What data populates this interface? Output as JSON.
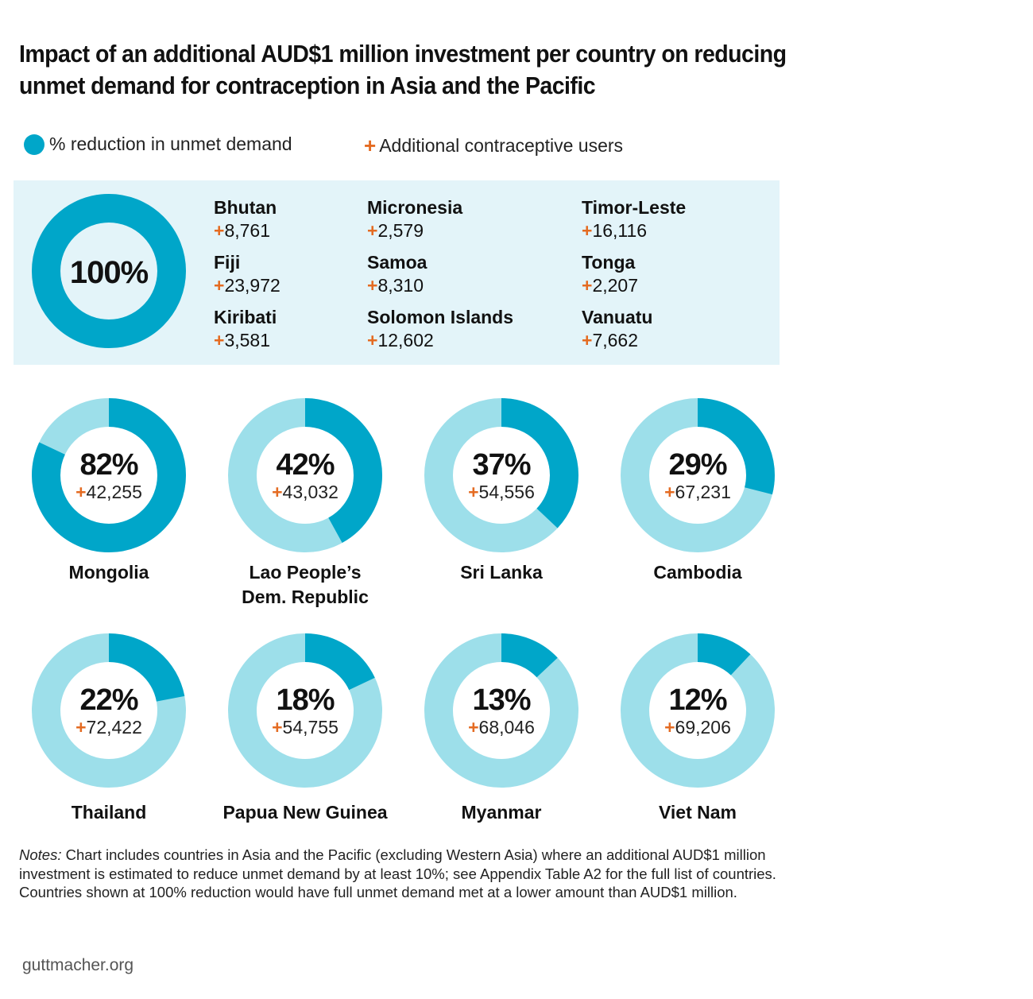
{
  "title_lines": [
    "Impact of an additional AUD$1 million investment per country on reducing",
    "unmet demand for contraception in Asia and the Pacific"
  ],
  "legend": {
    "pct_label": "% reduction in unmet demand",
    "users_label": "Additional contraceptive users"
  },
  "colors": {
    "primary": "#00a6c9",
    "secondary": "#9ddfea",
    "panel_bg": "#e3f4f9",
    "accent_plus": "#e46b22"
  },
  "chart_data": {
    "type": "pie",
    "value_unit": "% reduction in unmet demand",
    "full_group": {
      "pct": 100,
      "pct_label": "100%",
      "countries": [
        {
          "name": "Bhutan",
          "users": "+8,761"
        },
        {
          "name": "Fiji",
          "users": "+23,972"
        },
        {
          "name": "Kiribati",
          "users": "+3,581"
        },
        {
          "name": "Micronesia",
          "users": "+2,579"
        },
        {
          "name": "Samoa",
          "users": "+8,310"
        },
        {
          "name": "Solomon Islands",
          "users": "+12,602"
        },
        {
          "name": "Timor-Leste",
          "users": "+16,116"
        },
        {
          "name": "Tonga",
          "users": "+2,207"
        },
        {
          "name": "Vanuatu",
          "users": "+7,662"
        }
      ]
    },
    "countries": [
      {
        "name_lines": [
          "Mongolia"
        ],
        "pct": 82,
        "pct_label": "82%",
        "users": "+42,255"
      },
      {
        "name_lines": [
          "Lao People’s",
          "Dem. Republic"
        ],
        "pct": 42,
        "pct_label": "42%",
        "users": "+43,032"
      },
      {
        "name_lines": [
          "Sri Lanka"
        ],
        "pct": 37,
        "pct_label": "37%",
        "users": "+54,556"
      },
      {
        "name_lines": [
          "Cambodia"
        ],
        "pct": 29,
        "pct_label": "29%",
        "users": "+67,231"
      },
      {
        "name_lines": [
          "Thailand"
        ],
        "pct": 22,
        "pct_label": "22%",
        "users": "+72,422"
      },
      {
        "name_lines": [
          "Papua New Guinea"
        ],
        "pct": 18,
        "pct_label": "18%",
        "users": "+54,755"
      },
      {
        "name_lines": [
          "Myanmar"
        ],
        "pct": 13,
        "pct_label": "13%",
        "users": "+68,046"
      },
      {
        "name_lines": [
          "Viet Nam"
        ],
        "pct": 12,
        "pct_label": "12%",
        "users": "+69,206"
      }
    ]
  },
  "notes": {
    "label": "Notes:",
    "text": "Chart includes countries in Asia and the Pacific (excluding Western Asia) where an additional AUD$1 million investment is estimated to reduce unmet demand by at least 10%; see Appendix Table A2 for the full list of countries. Countries shown at 100% reduction would have full unmet demand met at a lower amount than AUD$1 million."
  },
  "footer": "guttmacher.org"
}
